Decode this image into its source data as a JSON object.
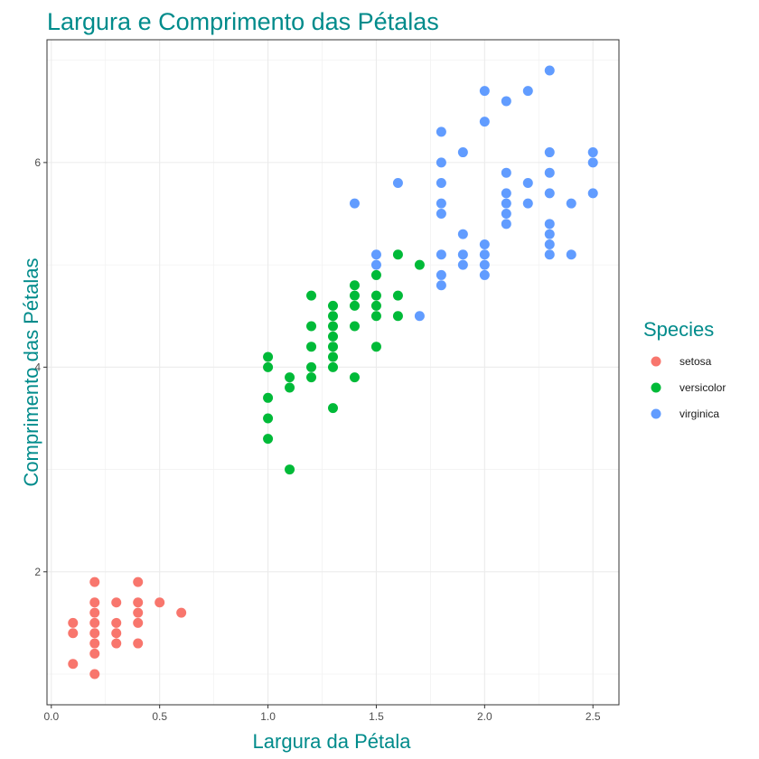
{
  "chart_data": {
    "type": "scatter",
    "title": "Largura e Comprimento das Pétalas",
    "xlabel": "Largura da Pétala",
    "ylabel": "Comprimento das Pétalas",
    "xlim": [
      -0.02,
      2.62
    ],
    "ylim": [
      0.7,
      7.2
    ],
    "x_ticks": [
      0.0,
      0.5,
      1.0,
      1.5,
      2.0,
      2.5
    ],
    "x_tick_labels": [
      "0.0",
      "0.5",
      "1.0",
      "1.5",
      "2.0",
      "2.5"
    ],
    "y_ticks": [
      2,
      4,
      6
    ],
    "y_tick_labels": [
      "2",
      "4",
      "6"
    ],
    "grid": true,
    "legend": {
      "title": "Species",
      "position": "right"
    },
    "title_color": "#008B8B",
    "series": [
      {
        "name": "setosa",
        "color": "#F8766D",
        "points": [
          [
            0.1,
            1.1
          ],
          [
            0.1,
            1.4
          ],
          [
            0.1,
            1.5
          ],
          [
            0.2,
            1.0
          ],
          [
            0.2,
            1.2
          ],
          [
            0.2,
            1.3
          ],
          [
            0.2,
            1.4
          ],
          [
            0.2,
            1.5
          ],
          [
            0.2,
            1.6
          ],
          [
            0.2,
            1.7
          ],
          [
            0.2,
            1.9
          ],
          [
            0.3,
            1.3
          ],
          [
            0.3,
            1.4
          ],
          [
            0.3,
            1.5
          ],
          [
            0.3,
            1.7
          ],
          [
            0.4,
            1.3
          ],
          [
            0.4,
            1.5
          ],
          [
            0.4,
            1.6
          ],
          [
            0.4,
            1.7
          ],
          [
            0.4,
            1.9
          ],
          [
            0.5,
            1.7
          ],
          [
            0.6,
            1.6
          ]
        ]
      },
      {
        "name": "versicolor",
        "color": "#00BA38",
        "points": [
          [
            1.0,
            3.3
          ],
          [
            1.0,
            3.5
          ],
          [
            1.0,
            3.7
          ],
          [
            1.0,
            4.0
          ],
          [
            1.0,
            4.1
          ],
          [
            1.1,
            3.0
          ],
          [
            1.1,
            3.8
          ],
          [
            1.1,
            3.9
          ],
          [
            1.2,
            3.9
          ],
          [
            1.2,
            4.0
          ],
          [
            1.2,
            4.2
          ],
          [
            1.2,
            4.4
          ],
          [
            1.2,
            4.7
          ],
          [
            1.3,
            3.6
          ],
          [
            1.3,
            4.0
          ],
          [
            1.3,
            4.1
          ],
          [
            1.3,
            4.2
          ],
          [
            1.3,
            4.3
          ],
          [
            1.3,
            4.4
          ],
          [
            1.3,
            4.5
          ],
          [
            1.3,
            4.6
          ],
          [
            1.4,
            3.9
          ],
          [
            1.4,
            4.4
          ],
          [
            1.4,
            4.6
          ],
          [
            1.4,
            4.7
          ],
          [
            1.4,
            4.8
          ],
          [
            1.5,
            4.2
          ],
          [
            1.5,
            4.5
          ],
          [
            1.5,
            4.6
          ],
          [
            1.5,
            4.7
          ],
          [
            1.5,
            4.9
          ],
          [
            1.6,
            4.5
          ],
          [
            1.6,
            4.7
          ],
          [
            1.6,
            5.1
          ],
          [
            1.7,
            5.0
          ]
        ]
      },
      {
        "name": "virginica",
        "color": "#619CFF",
        "points": [
          [
            1.4,
            5.6
          ],
          [
            1.5,
            5.0
          ],
          [
            1.5,
            5.1
          ],
          [
            1.6,
            5.8
          ],
          [
            1.7,
            4.5
          ],
          [
            1.8,
            4.8
          ],
          [
            1.8,
            4.9
          ],
          [
            1.8,
            5.1
          ],
          [
            1.8,
            5.5
          ],
          [
            1.8,
            5.6
          ],
          [
            1.8,
            5.8
          ],
          [
            1.8,
            6.0
          ],
          [
            1.8,
            6.3
          ],
          [
            1.9,
            5.0
          ],
          [
            1.9,
            5.1
          ],
          [
            1.9,
            5.3
          ],
          [
            1.9,
            6.1
          ],
          [
            2.0,
            4.9
          ],
          [
            2.0,
            5.0
          ],
          [
            2.0,
            5.1
          ],
          [
            2.0,
            5.2
          ],
          [
            2.0,
            6.4
          ],
          [
            2.0,
            6.7
          ],
          [
            2.1,
            5.4
          ],
          [
            2.1,
            5.5
          ],
          [
            2.1,
            5.6
          ],
          [
            2.1,
            5.7
          ],
          [
            2.1,
            5.9
          ],
          [
            2.1,
            6.6
          ],
          [
            2.2,
            5.6
          ],
          [
            2.2,
            5.8
          ],
          [
            2.2,
            6.7
          ],
          [
            2.3,
            5.1
          ],
          [
            2.3,
            5.2
          ],
          [
            2.3,
            5.3
          ],
          [
            2.3,
            5.4
          ],
          [
            2.3,
            5.7
          ],
          [
            2.3,
            5.9
          ],
          [
            2.3,
            6.1
          ],
          [
            2.3,
            6.9
          ],
          [
            2.4,
            5.1
          ],
          [
            2.4,
            5.6
          ],
          [
            2.5,
            5.7
          ],
          [
            2.5,
            6.0
          ],
          [
            2.5,
            6.1
          ]
        ]
      }
    ]
  }
}
